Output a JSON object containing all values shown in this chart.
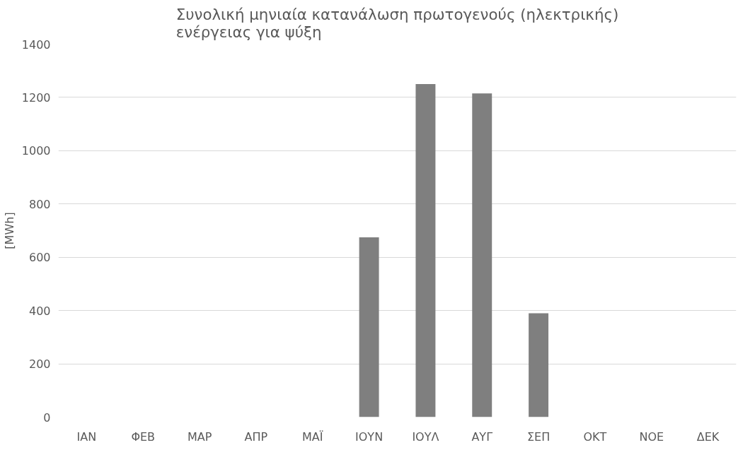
{
  "chart_data": {
    "type": "bar",
    "title": "Συνολική μηνιαία κατανάλωση πρωτογενούς (ηλεκτρικής)\nενέργειας για ψύξη",
    "ylabel": "[MWh]",
    "categories": [
      "ΙΑΝ",
      "ΦΕΒ",
      "ΜΑΡ",
      "ΑΠΡ",
      "ΜΑΪ",
      "ΙΟΥΝ",
      "ΙΟΥΛ",
      "ΑΥΓ",
      "ΣΕΠ",
      "ΟΚΤ",
      "ΝΟΕ",
      "ΔΕΚ"
    ],
    "values": [
      0,
      0,
      0,
      0,
      0,
      675,
      1250,
      1215,
      390,
      0,
      0,
      0
    ],
    "color": "#7f7f7f",
    "ylim": [
      0,
      1400
    ],
    "yticks": [
      0,
      200,
      400,
      600,
      800,
      1000,
      1200,
      1400
    ],
    "grid": "y"
  }
}
